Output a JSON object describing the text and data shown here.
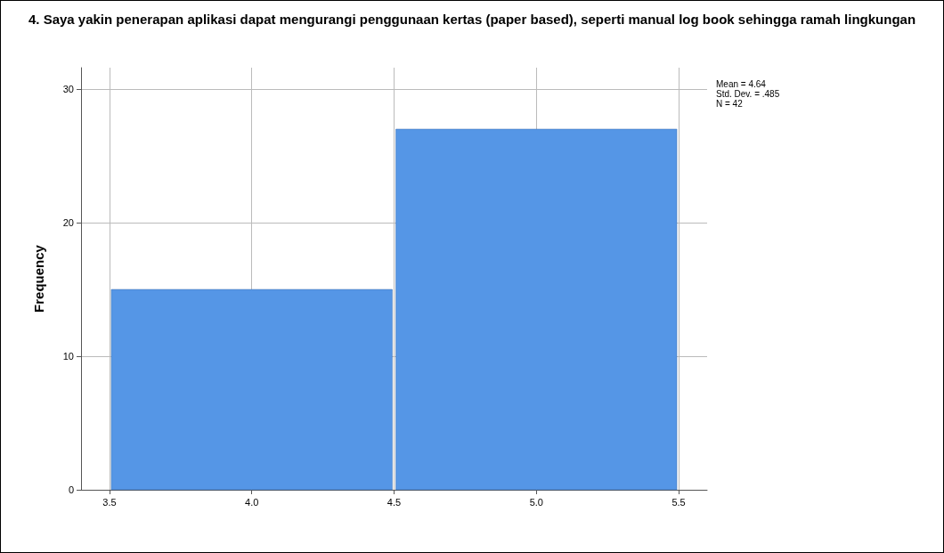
{
  "chart_data": {
    "type": "histogram",
    "title": "4. Saya yakin penerapan aplikasi dapat mengurangi penggunaan kertas (paper based), seperti manual log book sehingga ramah lingkungan",
    "ylabel": "Frequency",
    "bins": [
      3.5,
      4.5,
      5.5
    ],
    "values": [
      15,
      27
    ],
    "color": "#5596e6",
    "xlim": [
      3.4,
      5.6
    ],
    "xticks": [
      {
        "value": 3.5,
        "label": "3.5"
      },
      {
        "value": 4,
        "label": "4.0"
      },
      {
        "value": 4.5,
        "label": "4.5"
      },
      {
        "value": 5,
        "label": "5.0"
      },
      {
        "value": 5.5,
        "label": "5.5"
      }
    ],
    "ylim": [
      0,
      31.6
    ],
    "yticks": [
      0,
      10,
      20,
      30
    ],
    "grid": true,
    "annotations": [
      "Mean = 4.64",
      "Std. Dev. = .485",
      "N = 42"
    ]
  }
}
